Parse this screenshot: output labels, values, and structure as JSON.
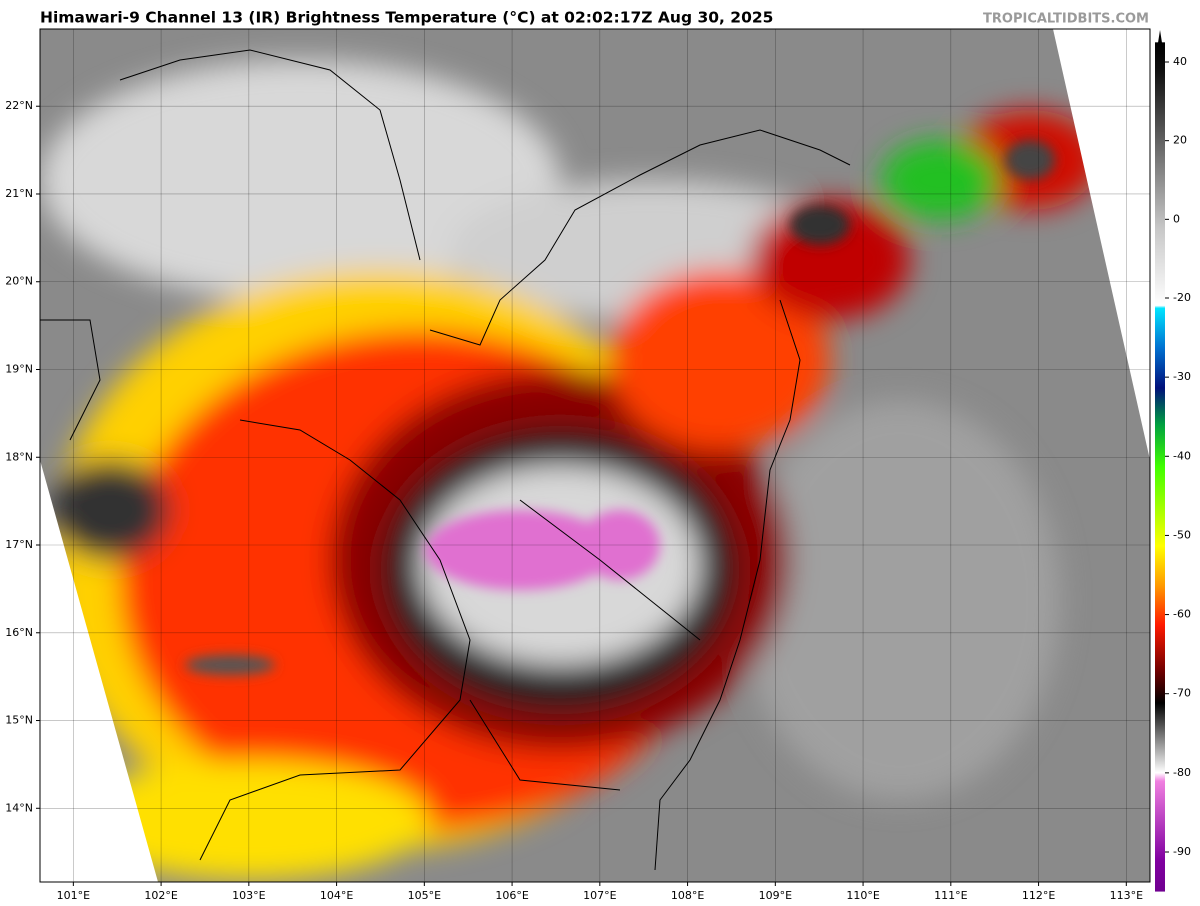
{
  "header": {
    "title": "Himawari-9 Channel 13 (IR) Brightness Temperature (°C) at 02:02:17Z Aug 30, 2025",
    "watermark": "TROPICALTIDBITS.COM"
  },
  "map": {
    "xlim": [
      100.62,
      113.27
    ],
    "ylim": [
      13.16,
      22.88
    ],
    "xticks": [
      {
        "value": 101,
        "label": "101°E"
      },
      {
        "value": 102,
        "label": "102°E"
      },
      {
        "value": 103,
        "label": "103°E"
      },
      {
        "value": 104,
        "label": "104°E"
      },
      {
        "value": 105,
        "label": "105°E"
      },
      {
        "value": 106,
        "label": "106°E"
      },
      {
        "value": 107,
        "label": "107°E"
      },
      {
        "value": 108,
        "label": "108°E"
      },
      {
        "value": 109,
        "label": "109°E"
      },
      {
        "value": 110,
        "label": "110°E"
      },
      {
        "value": 111,
        "label": "111°E"
      },
      {
        "value": 112,
        "label": "112°E"
      },
      {
        "value": 113,
        "label": "113°E"
      }
    ],
    "yticks": [
      {
        "value": 14,
        "label": "14°N"
      },
      {
        "value": 15,
        "label": "15°N"
      },
      {
        "value": 16,
        "label": "16°N"
      },
      {
        "value": 17,
        "label": "17°N"
      },
      {
        "value": 18,
        "label": "18°N"
      },
      {
        "value": 19,
        "label": "19°N"
      },
      {
        "value": 20,
        "label": "20°N"
      },
      {
        "value": 21,
        "label": "21°N"
      },
      {
        "value": 22,
        "label": "22°N"
      }
    ]
  },
  "colorbar": {
    "lim": [
      -95,
      45
    ],
    "ticks": [
      40,
      20,
      0,
      -20,
      -30,
      -40,
      -50,
      -60,
      -70,
      -80,
      -90
    ]
  }
}
